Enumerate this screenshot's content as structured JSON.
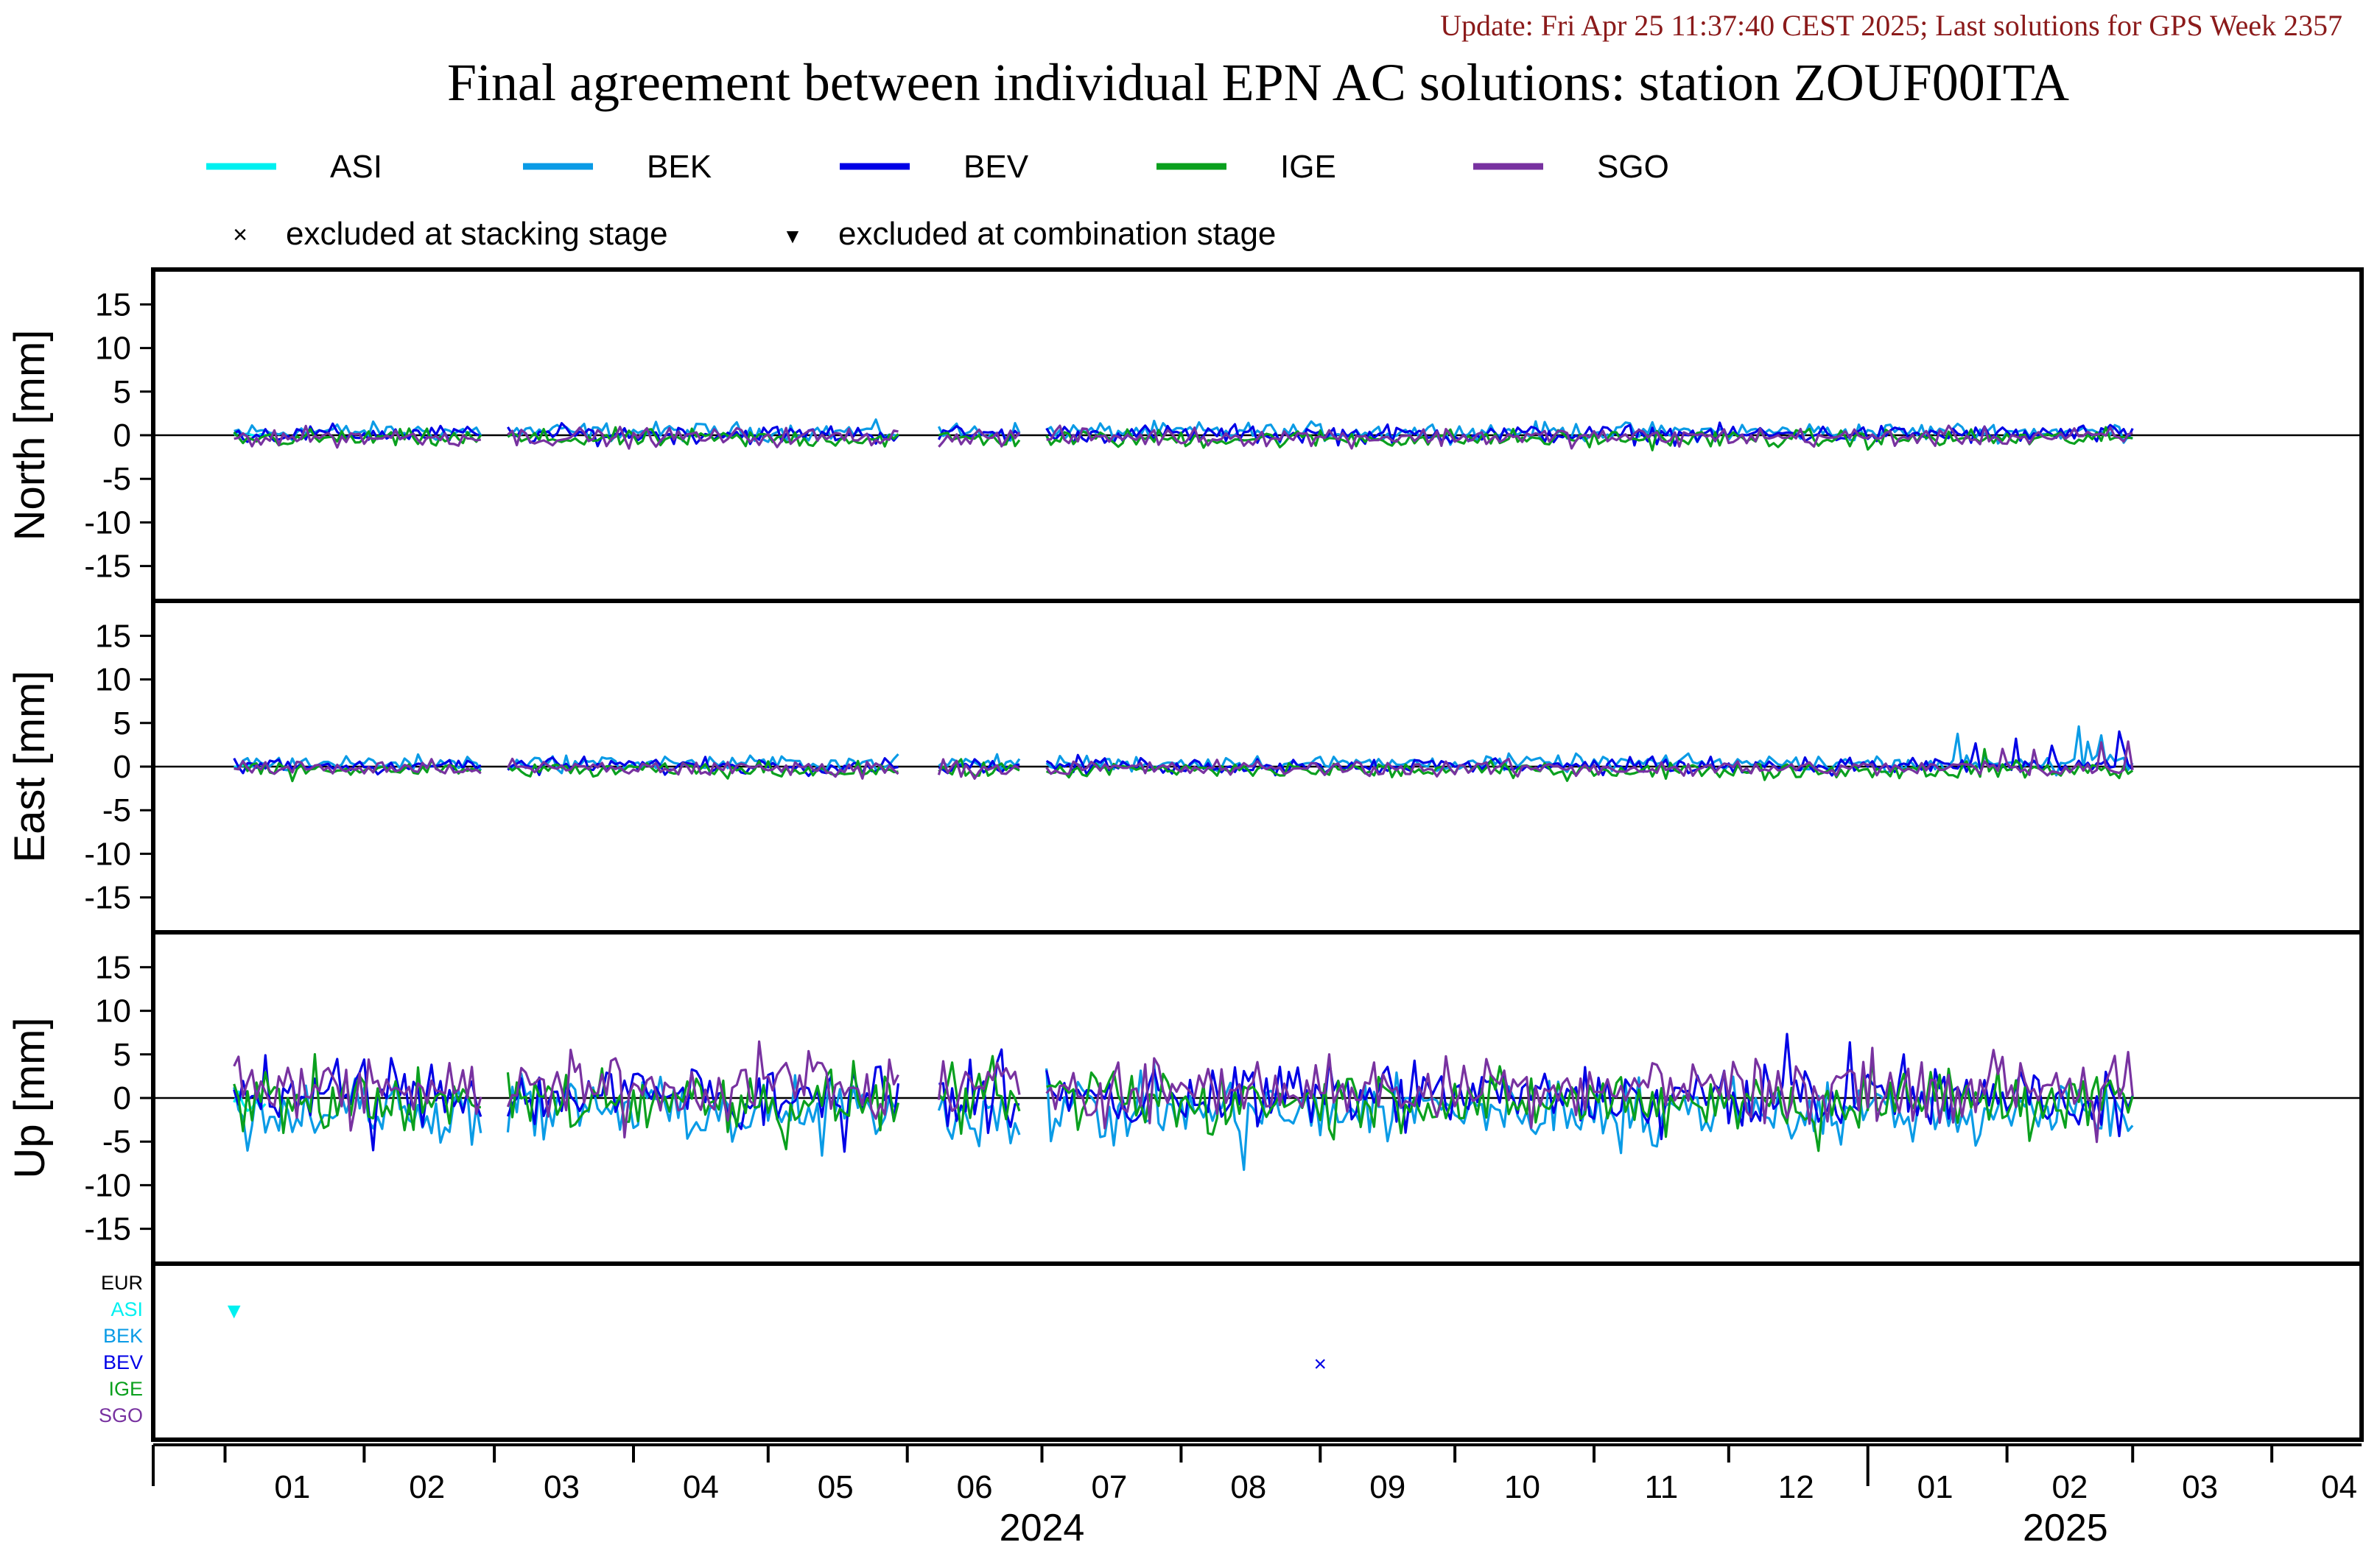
{
  "update_text": "Update: Fri Apr 25 11:37:40 CEST 2025; Last solutions for GPS Week 2357",
  "title": "Final agreement between individual EPN AC solutions: station ZOUF00ITA",
  "legend": {
    "series": [
      {
        "name": "ASI",
        "color": "#00f0f0"
      },
      {
        "name": "BEK",
        "color": "#0a9be6"
      },
      {
        "name": "BEV",
        "color": "#0000e6"
      },
      {
        "name": "IGE",
        "color": "#0aa01e"
      },
      {
        "name": "SGO",
        "color": "#7832a0"
      }
    ],
    "markers": [
      {
        "symbol": "×",
        "label": "excluded at stacking stage"
      },
      {
        "symbol": "▼",
        "label": "excluded at combination stage"
      }
    ]
  },
  "chart_data": {
    "type": "line",
    "x_range": [
      "2023-12-16",
      "2025-04-21"
    ],
    "x_ticks_months": [
      "01",
      "02",
      "03",
      "04",
      "05",
      "06",
      "07",
      "08",
      "09",
      "10",
      "11",
      "12",
      "01",
      "02",
      "03",
      "04"
    ],
    "x_year_labels": [
      {
        "year": "2024",
        "center_date": "2024-07-01"
      },
      {
        "year": "2025",
        "center_date": "2025-02-14"
      }
    ],
    "y_range": [
      -19,
      19
    ],
    "y_ticks": [
      15,
      10,
      5,
      0,
      -5,
      -10,
      -15
    ],
    "panels": [
      {
        "ylabel": "North [mm]",
        "noise_amplitude": 0.8
      },
      {
        "ylabel": "East [mm]",
        "noise_amplitude": 0.7
      },
      {
        "ylabel": "Up [mm]",
        "noise_amplitude": 2.8
      }
    ],
    "data_gaps": [
      [
        "2024-02-28",
        "2024-03-03"
      ],
      [
        "2024-05-31",
        "2024-06-07"
      ],
      [
        "2024-06-27",
        "2024-07-01"
      ]
    ],
    "exclusions_panel": {
      "row_labels": [
        "EUR",
        "ASI",
        "BEK",
        "BEV",
        "IGE",
        "SGO"
      ],
      "row_colors": [
        "#000000",
        "#00f0f0",
        "#0a9be6",
        "#0000e6",
        "#0aa01e",
        "#7832a0"
      ],
      "events": [
        {
          "row": "ASI",
          "date": "2024-01-03",
          "type": "combination",
          "symbol": "▼"
        },
        {
          "row": "BEV",
          "date": "2024-09-01",
          "type": "stacking",
          "symbol": "×"
        }
      ]
    }
  }
}
